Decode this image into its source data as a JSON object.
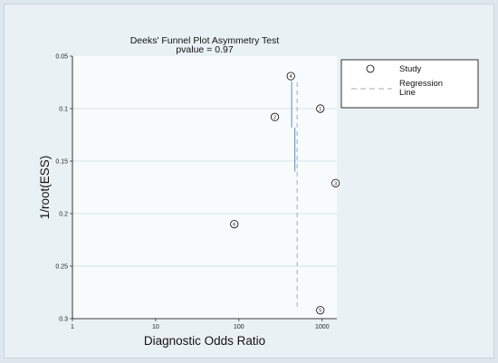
{
  "chart_data": {
    "type": "scatter",
    "title": "Deeks' Funnel Plot Asymmetry Test",
    "subtitle": "pvalue =  0.97",
    "xlabel": "Diagnostic Odds Ratio",
    "ylabel": "1/root(ESS)",
    "x_scale": "log",
    "x_ticks": [
      1,
      10,
      100,
      1000
    ],
    "x_tick_labels": [
      "1",
      "10",
      "100",
      "1000"
    ],
    "xlim": [
      1,
      1500
    ],
    "y_reversed": true,
    "y_ticks": [
      0.05,
      0.1,
      0.15,
      0.2,
      0.25,
      0.3
    ],
    "y_tick_labels": [
      "0.05",
      "0.1",
      "0.15",
      "0.2",
      "0.25",
      "0.3"
    ],
    "ylim": [
      0.05,
      0.3
    ],
    "grid": true,
    "legend_position": "right",
    "series": [
      {
        "name": "Study",
        "points": [
          {
            "label": "1",
            "x": 950,
            "y": 0.1
          },
          {
            "label": "2",
            "x": 270,
            "y": 0.108
          },
          {
            "label": "3",
            "x": 1450,
            "y": 0.171
          },
          {
            "label": "4",
            "x": 420,
            "y": 0.069
          },
          {
            "label": "5",
            "x": 950,
            "y": 0.292
          },
          {
            "label": "6",
            "x": 88,
            "y": 0.21
          }
        ]
      },
      {
        "name": "Regression Line",
        "style": "dashed",
        "color": "#a9a9a9",
        "x": [
          500,
          500
        ],
        "y": [
          0.075,
          0.29
        ]
      }
    ],
    "colors": {
      "frame_bg": "#eaf1f5",
      "grid": "#d6e3ea",
      "axis": "#000000",
      "vertical_segment": "#5b8bb8"
    }
  }
}
